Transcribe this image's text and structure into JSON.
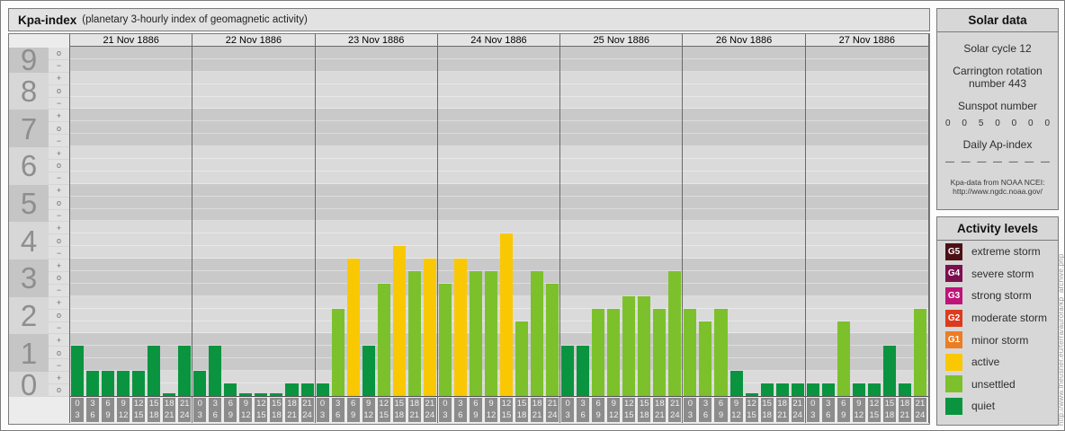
{
  "title": {
    "main": "Kpa-index",
    "subtitle": "(planetary 3-hourly index of geomagnetic activity)"
  },
  "chart_data": {
    "type": "bar",
    "title": "Kpa-index",
    "subtitle": "planetary 3-hourly index of geomagnetic activity",
    "y_axis": {
      "levels": [
        {
          "label": "9",
          "ticks": [
            "o",
            "-"
          ]
        },
        {
          "label": "8",
          "ticks": [
            "+",
            "o",
            "-"
          ]
        },
        {
          "label": "7",
          "ticks": [
            "+",
            "o",
            "-"
          ]
        },
        {
          "label": "6",
          "ticks": [
            "+",
            "o",
            "-"
          ]
        },
        {
          "label": "5",
          "ticks": [
            "+",
            "o",
            "-"
          ]
        },
        {
          "label": "4",
          "ticks": [
            "+",
            "o",
            "-"
          ]
        },
        {
          "label": "3",
          "ticks": [
            "+",
            "o",
            "-"
          ]
        },
        {
          "label": "2",
          "ticks": [
            "+",
            "o",
            "-"
          ]
        },
        {
          "label": "1",
          "ticks": [
            "+",
            "o",
            "-"
          ]
        },
        {
          "label": "0",
          "ticks": [
            "+",
            "o"
          ]
        }
      ],
      "range": [
        "0o",
        "9o"
      ]
    },
    "interval_labels": [
      [
        "0",
        "3"
      ],
      [
        "3",
        "6"
      ],
      [
        "6",
        "9"
      ],
      [
        "9",
        "12"
      ],
      [
        "12",
        "15"
      ],
      [
        "15",
        "18"
      ],
      [
        "18",
        "21"
      ],
      [
        "21",
        "24"
      ]
    ],
    "days": [
      {
        "date": "21 Nov 1886",
        "kp": [
          "1+",
          "1-",
          "1-",
          "1-",
          "1-",
          "1+",
          "0o",
          "1+"
        ]
      },
      {
        "date": "22 Nov 1886",
        "kp": [
          "1-",
          "1+",
          "0+",
          "0o",
          "0o",
          "0o",
          "0+",
          "0+"
        ]
      },
      {
        "date": "23 Nov 1886",
        "kp": [
          "0+",
          "2+",
          "4-",
          "1+",
          "3o",
          "4o",
          "3+",
          "4-"
        ]
      },
      {
        "date": "24 Nov 1886",
        "kp": [
          "3o",
          "4-",
          "3+",
          "3+",
          "4+",
          "2o",
          "3+",
          "3o"
        ]
      },
      {
        "date": "25 Nov 1886",
        "kp": [
          "1+",
          "1+",
          "2+",
          "2+",
          "3-",
          "3-",
          "2+",
          "3+"
        ]
      },
      {
        "date": "26 Nov 1886",
        "kp": [
          "2+",
          "2o",
          "2+",
          "1-",
          "0o",
          "0+",
          "0+",
          "0+"
        ]
      },
      {
        "date": "27 Nov 1886",
        "kp": [
          "0+",
          "0+",
          "2o",
          "0+",
          "0+",
          "1+",
          "0+",
          "2+"
        ]
      }
    ],
    "activity_colors": {
      "quiet": "#0a9440",
      "unsettled": "#7cc12b",
      "active": "#f9c802"
    },
    "activity_ranges": {
      "quiet": "0o to 1+",
      "unsettled": "2- to 3+",
      "active": "4- to 4+"
    },
    "legend_position": "right"
  },
  "sidebar": {
    "solar_data": {
      "title": "Solar data",
      "solar_cycle": "Solar cycle 12",
      "carrington": "Carrington rotation number 443",
      "sunspot_label": "Sunspot number",
      "sunspot_values": [
        "0",
        "0",
        "5",
        "0",
        "0",
        "0",
        "0"
      ],
      "ap_label": "Daily Ap-index",
      "ap_values": [
        "—",
        "—",
        "—",
        "—",
        "—",
        "—",
        "—"
      ],
      "source_line1": "Kpa-data from NOAA NCEI:",
      "source_line2": "http://www.ngdc.noaa.gov/"
    },
    "activity_levels": {
      "title": "Activity levels",
      "items": [
        {
          "code": "G5",
          "label": "extreme storm",
          "color": "#4c1015"
        },
        {
          "code": "G4",
          "label": "severe storm",
          "color": "#7c104f"
        },
        {
          "code": "G3",
          "label": "strong storm",
          "color": "#c01377"
        },
        {
          "code": "G2",
          "label": "moderate storm",
          "color": "#dc3b1f"
        },
        {
          "code": "G1",
          "label": "minor storm",
          "color": "#ed7d23"
        },
        {
          "code": "",
          "label": "active",
          "color": "#f9c802"
        },
        {
          "code": "",
          "label": "unsettled",
          "color": "#7cc12b"
        },
        {
          "code": "",
          "label": "quiet",
          "color": "#0a9440"
        }
      ]
    }
  },
  "watermark": "http://www.theusner.eu/terra/aurora/kp_archive.php"
}
